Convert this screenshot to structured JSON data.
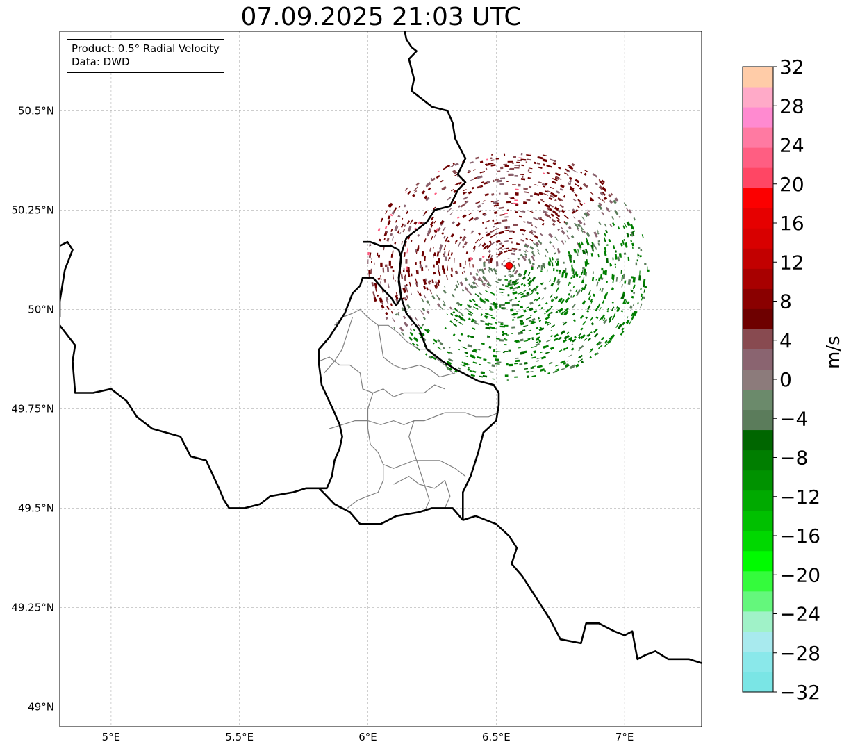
{
  "title": "07.09.2025 21:03 UTC",
  "info_box": {
    "product": "Product: 0.5° Radial Velocity",
    "data_source": "Data: DWD"
  },
  "map": {
    "extent": {
      "lon_min": 4.8,
      "lon_max": 7.3,
      "lat_min": 48.95,
      "lat_max": 50.7
    },
    "lon_ticks": [
      {
        "value": 5.0,
        "label": "5°E"
      },
      {
        "value": 5.5,
        "label": "5.5°E"
      },
      {
        "value": 6.0,
        "label": "6°E"
      },
      {
        "value": 6.5,
        "label": "6.5°E"
      },
      {
        "value": 7.0,
        "label": "7°E"
      }
    ],
    "lat_ticks": [
      {
        "value": 50.5,
        "label": "50.5°N"
      },
      {
        "value": 50.25,
        "label": "50.25°N"
      },
      {
        "value": 50.0,
        "label": "50°N"
      },
      {
        "value": 49.75,
        "label": "49.75°N"
      },
      {
        "value": 49.5,
        "label": "49.5°N"
      },
      {
        "value": 49.25,
        "label": "49.25°N"
      },
      {
        "value": 49.0,
        "label": "49°N"
      }
    ],
    "gridlines": true,
    "radar_site": {
      "lon": 6.55,
      "lat": 50.11,
      "color": "#ff0000"
    },
    "border_color": "#000000",
    "district_color": "#808080",
    "national_borders": [
      [
        [
          6.14,
          50.71
        ],
        [
          6.15,
          50.68
        ],
        [
          6.17,
          50.66
        ],
        [
          6.19,
          50.65
        ],
        [
          6.16,
          50.63
        ],
        [
          6.18,
          50.58
        ],
        [
          6.17,
          50.55
        ],
        [
          6.21,
          50.53
        ],
        [
          6.25,
          50.51
        ],
        [
          6.31,
          50.5
        ],
        [
          6.33,
          50.47
        ],
        [
          6.34,
          50.43
        ],
        [
          6.38,
          50.38
        ],
        [
          6.35,
          50.34
        ],
        [
          6.38,
          50.32
        ],
        [
          6.35,
          50.3
        ],
        [
          6.32,
          50.26
        ],
        [
          6.26,
          50.25
        ],
        [
          6.23,
          50.22
        ],
        [
          6.19,
          50.2
        ],
        [
          6.15,
          50.18
        ],
        [
          6.13,
          50.14
        ],
        [
          6.12,
          50.07
        ],
        [
          6.13,
          50.03
        ],
        [
          6.15,
          49.99
        ],
        [
          6.2,
          49.95
        ],
        [
          6.23,
          49.9
        ],
        [
          6.29,
          49.87
        ],
        [
          6.34,
          49.85
        ],
        [
          6.43,
          49.82
        ],
        [
          6.49,
          49.81
        ],
        [
          6.51,
          49.79
        ],
        [
          6.51,
          49.76
        ],
        [
          6.5,
          49.72
        ],
        [
          6.45,
          49.69
        ],
        [
          6.43,
          49.64
        ],
        [
          6.4,
          49.58
        ],
        [
          6.37,
          49.54
        ],
        [
          6.37,
          49.47
        ]
      ],
      [
        [
          6.37,
          49.47
        ],
        [
          6.33,
          49.5
        ],
        [
          6.25,
          49.5
        ],
        [
          6.2,
          49.49
        ],
        [
          6.11,
          49.48
        ],
        [
          6.05,
          49.46
        ],
        [
          5.97,
          49.46
        ],
        [
          5.93,
          49.49
        ],
        [
          5.87,
          49.51
        ],
        [
          5.84,
          49.53
        ],
        [
          5.81,
          49.55
        ],
        [
          5.76,
          49.55
        ],
        [
          5.71,
          49.54
        ],
        [
          5.62,
          49.53
        ],
        [
          5.58,
          49.51
        ],
        [
          5.52,
          49.5
        ],
        [
          5.46,
          49.5
        ],
        [
          5.44,
          49.52
        ],
        [
          5.42,
          49.55
        ],
        [
          5.37,
          49.62
        ],
        [
          5.31,
          49.63
        ],
        [
          5.27,
          49.68
        ],
        [
          5.16,
          49.7
        ],
        [
          5.1,
          49.73
        ],
        [
          5.06,
          49.77
        ],
        [
          5.0,
          49.8
        ],
        [
          4.93,
          49.79
        ],
        [
          4.86,
          49.79
        ],
        [
          4.85,
          49.87
        ],
        [
          4.86,
          49.91
        ],
        [
          4.8,
          49.96
        ]
      ],
      [
        [
          4.8,
          50.16
        ],
        [
          4.83,
          50.17
        ],
        [
          4.85,
          50.15
        ],
        [
          4.82,
          50.1
        ],
        [
          4.8,
          50.02
        ],
        [
          4.8,
          49.98
        ]
      ],
      [
        [
          6.37,
          49.47
        ],
        [
          6.42,
          49.48
        ],
        [
          6.5,
          49.46
        ],
        [
          6.55,
          49.43
        ],
        [
          6.58,
          49.4
        ],
        [
          6.56,
          49.36
        ],
        [
          6.6,
          49.33
        ],
        [
          6.65,
          49.28
        ],
        [
          6.68,
          49.25
        ],
        [
          6.71,
          49.22
        ],
        [
          6.75,
          49.17
        ],
        [
          6.83,
          49.16
        ],
        [
          6.85,
          49.21
        ],
        [
          6.9,
          49.21
        ],
        [
          6.96,
          49.19
        ],
        [
          7.0,
          49.18
        ],
        [
          7.03,
          49.19
        ],
        [
          7.05,
          49.12
        ],
        [
          7.08,
          49.13
        ],
        [
          7.12,
          49.14
        ],
        [
          7.17,
          49.12
        ],
        [
          7.25,
          49.12
        ],
        [
          7.3,
          49.11
        ]
      ],
      [
        [
          5.98,
          50.17
        ],
        [
          6.01,
          50.17
        ],
        [
          6.05,
          50.16
        ],
        [
          6.09,
          50.16
        ],
        [
          6.12,
          50.15
        ],
        [
          6.13,
          50.13
        ],
        [
          6.12,
          50.08
        ],
        [
          6.13,
          50.03
        ],
        [
          6.11,
          50.01
        ],
        [
          6.09,
          50.03
        ],
        [
          6.06,
          50.05
        ],
        [
          6.02,
          50.08
        ],
        [
          5.98,
          50.08
        ],
        [
          5.97,
          50.06
        ],
        [
          5.94,
          50.04
        ],
        [
          5.91,
          49.99
        ],
        [
          5.88,
          49.96
        ],
        [
          5.85,
          49.93
        ],
        [
          5.81,
          49.9
        ],
        [
          5.81,
          49.86
        ],
        [
          5.82,
          49.81
        ],
        [
          5.87,
          49.74
        ],
        [
          5.89,
          49.71
        ],
        [
          5.9,
          49.68
        ],
        [
          5.89,
          49.65
        ],
        [
          5.87,
          49.62
        ],
        [
          5.86,
          49.58
        ],
        [
          5.84,
          49.55
        ],
        [
          5.81,
          49.55
        ]
      ]
    ],
    "districts": [
      [
        [
          5.87,
          49.96
        ],
        [
          5.9,
          49.98
        ],
        [
          5.94,
          49.99
        ],
        [
          5.97,
          50.0
        ],
        [
          6.0,
          49.98
        ],
        [
          6.04,
          49.96
        ],
        [
          6.08,
          49.96
        ],
        [
          6.12,
          49.94
        ],
        [
          6.15,
          49.92
        ],
        [
          6.2,
          49.9
        ],
        [
          6.24,
          49.9
        ]
      ],
      [
        [
          6.04,
          49.96
        ],
        [
          6.05,
          49.92
        ],
        [
          6.06,
          49.88
        ],
        [
          6.1,
          49.86
        ],
        [
          6.14,
          49.85
        ],
        [
          6.2,
          49.86
        ],
        [
          6.24,
          49.85
        ],
        [
          6.28,
          49.83
        ],
        [
          6.34,
          49.84
        ]
      ],
      [
        [
          5.81,
          49.87
        ],
        [
          5.85,
          49.88
        ],
        [
          5.89,
          49.86
        ],
        [
          5.93,
          49.86
        ],
        [
          5.97,
          49.84
        ],
        [
          5.98,
          49.8
        ],
        [
          6.02,
          49.79
        ],
        [
          6.06,
          49.8
        ],
        [
          6.1,
          49.78
        ],
        [
          6.14,
          49.79
        ],
        [
          6.18,
          49.79
        ],
        [
          6.22,
          49.79
        ],
        [
          6.26,
          49.81
        ],
        [
          6.3,
          49.8
        ]
      ],
      [
        [
          6.02,
          49.79
        ],
        [
          6.0,
          49.75
        ],
        [
          6.0,
          49.7
        ],
        [
          6.01,
          49.66
        ],
        [
          6.04,
          49.64
        ],
        [
          6.06,
          49.61
        ],
        [
          6.06,
          49.57
        ],
        [
          6.04,
          49.54
        ],
        [
          6.0,
          49.53
        ],
        [
          5.96,
          49.52
        ],
        [
          5.92,
          49.5
        ]
      ],
      [
        [
          5.85,
          49.7
        ],
        [
          5.9,
          49.71
        ],
        [
          5.95,
          49.72
        ],
        [
          6.0,
          49.72
        ],
        [
          6.05,
          49.71
        ],
        [
          6.1,
          49.72
        ],
        [
          6.14,
          49.71
        ],
        [
          6.18,
          49.72
        ],
        [
          6.22,
          49.72
        ],
        [
          6.26,
          49.73
        ],
        [
          6.3,
          49.74
        ],
        [
          6.34,
          49.74
        ],
        [
          6.38,
          49.74
        ],
        [
          6.42,
          49.73
        ],
        [
          6.47,
          49.73
        ],
        [
          6.51,
          49.74
        ]
      ],
      [
        [
          6.18,
          49.72
        ],
        [
          6.16,
          49.68
        ],
        [
          6.18,
          49.64
        ],
        [
          6.2,
          49.6
        ],
        [
          6.22,
          49.56
        ],
        [
          6.24,
          49.52
        ],
        [
          6.22,
          49.49
        ]
      ],
      [
        [
          6.06,
          49.61
        ],
        [
          6.1,
          49.6
        ],
        [
          6.14,
          49.61
        ],
        [
          6.18,
          49.62
        ],
        [
          6.24,
          49.62
        ],
        [
          6.28,
          49.62
        ],
        [
          6.34,
          49.6
        ],
        [
          6.38,
          49.58
        ]
      ],
      [
        [
          6.1,
          49.56
        ],
        [
          6.16,
          49.58
        ],
        [
          6.2,
          49.56
        ],
        [
          6.26,
          49.55
        ],
        [
          6.3,
          49.57
        ],
        [
          6.32,
          49.53
        ],
        [
          6.3,
          49.5
        ]
      ],
      [
        [
          5.94,
          49.98
        ],
        [
          5.92,
          49.94
        ],
        [
          5.9,
          49.9
        ],
        [
          5.87,
          49.87
        ],
        [
          5.83,
          49.84
        ]
      ],
      [
        [
          6.24,
          49.9
        ],
        [
          6.26,
          49.88
        ],
        [
          6.3,
          49.86
        ],
        [
          6.33,
          49.84
        ]
      ]
    ]
  },
  "colorbar": {
    "label": "m/s",
    "vmin": -32,
    "vmax": 32,
    "tick_labels": [
      "32",
      "28",
      "24",
      "20",
      "16",
      "12",
      "8",
      "4",
      "0",
      "−4",
      "−8",
      "−12",
      "−16",
      "−20",
      "−24",
      "−28",
      "−32"
    ],
    "tick_values": [
      32,
      28,
      24,
      20,
      16,
      12,
      8,
      4,
      0,
      -4,
      -8,
      -12,
      -16,
      -20,
      -24,
      -28,
      -32
    ],
    "colors_bottom_to_top": [
      "#7ae5e5",
      "#8ae8ea",
      "#a8eaee",
      "#a0f2c8",
      "#64f77c",
      "#34fb3c",
      "#00fb00",
      "#00d800",
      "#00c000",
      "#00aa00",
      "#009200",
      "#007e00",
      "#006600",
      "#5b7c5b",
      "#6b8a6b",
      "#8c7b7b",
      "#8a6470",
      "#884a50",
      "#6e0000",
      "#8a0000",
      "#a80000",
      "#c20000",
      "#d80000",
      "#e60000",
      "#fc0000",
      "#ff4664",
      "#ff5e82",
      "#ff7aa2",
      "#ff8ad0",
      "#ffaac8",
      "#ffcca8"
    ]
  },
  "velocity_colors": {
    "inbound_dark": "#006600",
    "inbound": "#007e00",
    "inbound_light": "#5b7c5b",
    "outbound": "#6e0000",
    "outbound_mid": "#884a50",
    "outbound_light": "#8a6470",
    "pink": "#ff5e82"
  }
}
